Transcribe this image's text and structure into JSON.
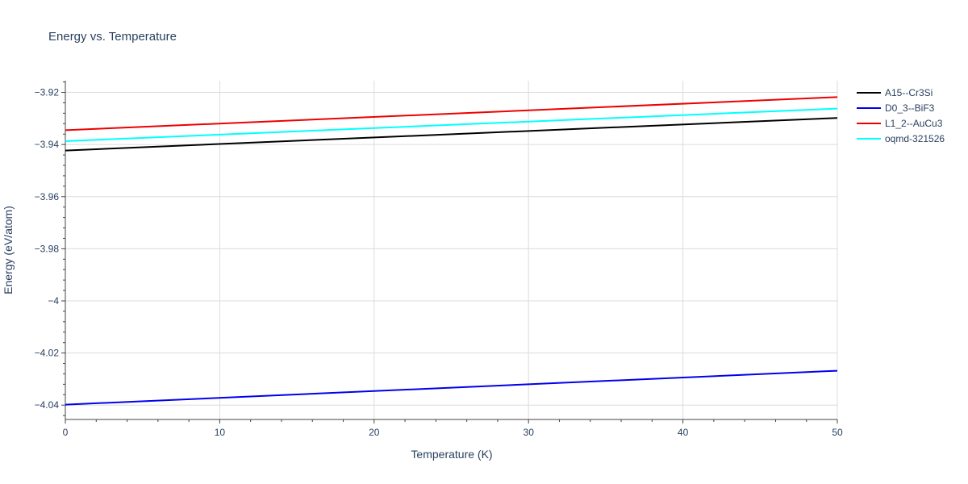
{
  "chart_data": {
    "type": "line",
    "title": "Energy vs. Temperature",
    "xlabel": "Temperature (K)",
    "ylabel": "Energy (eV/atom)",
    "xlim": [
      0,
      50
    ],
    "ylim": [
      -4.0455,
      -3.9155
    ],
    "x_ticks": [
      0,
      10,
      20,
      30,
      40,
      50
    ],
    "x_tick_labels": [
      "0",
      "10",
      "20",
      "30",
      "40",
      "50"
    ],
    "y_ticks": [
      -4.04,
      -4.02,
      -4.0,
      -3.98,
      -3.96,
      -3.94,
      -3.92
    ],
    "y_tick_labels": [
      "−4.04",
      "−4.02",
      "−4",
      "−3.98",
      "−3.96",
      "−3.94",
      "−3.92"
    ],
    "grid": true,
    "legend_position": "right",
    "x": [
      0,
      50
    ],
    "series": [
      {
        "name": "A15--Cr3Si",
        "color": "#000000",
        "values": [
          -3.9423,
          -3.9298
        ]
      },
      {
        "name": "D0_3--BiF3",
        "color": "#0000ee",
        "values": [
          -4.0398,
          -4.0268
        ]
      },
      {
        "name": "L1_2--AuCu3",
        "color": "#ee0000",
        "values": [
          -3.9345,
          -3.9218
        ]
      },
      {
        "name": "oqmd-321526",
        "color": "#00ffff",
        "values": [
          -3.9387,
          -3.9262
        ]
      }
    ]
  }
}
